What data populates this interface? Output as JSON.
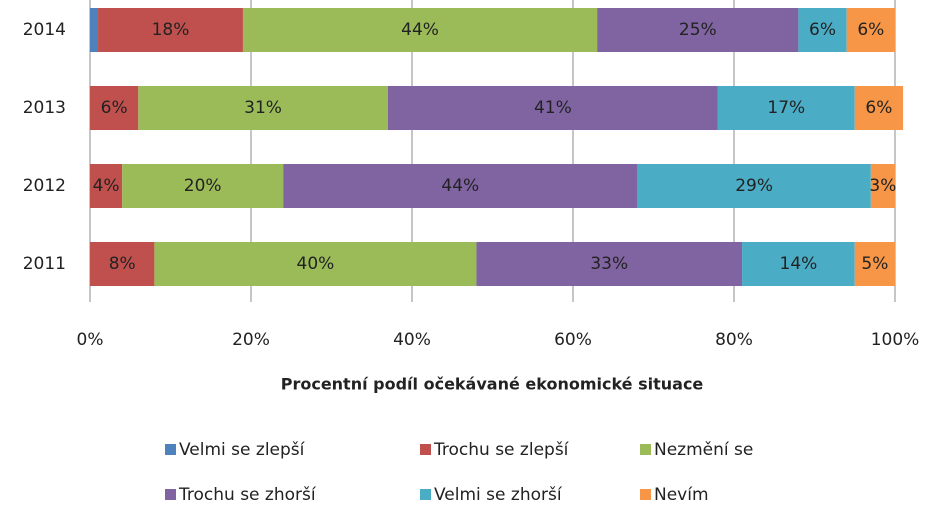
{
  "chart_data": {
    "type": "stacked-barh",
    "xlabel": "Procentní podíl očekávané ekonomické situace",
    "categories": [
      "2014",
      "2013",
      "2012",
      "2011"
    ],
    "series": [
      {
        "name": "Velmi se zlepší",
        "color": "#4f81bd",
        "values": [
          1,
          0,
          0,
          0
        ]
      },
      {
        "name": "Trochu se zlepší",
        "color": "#c0504d",
        "values": [
          18,
          6,
          4,
          8
        ],
        "value_labels": [
          "18%",
          "6%",
          "4%",
          "8%"
        ]
      },
      {
        "name": "Nezmění se",
        "color": "#9bbb59",
        "values": [
          44,
          31,
          20,
          40
        ],
        "value_labels": [
          "44%",
          "31%",
          "20%",
          "40%"
        ]
      },
      {
        "name": "Trochu se zhorší",
        "color": "#8064a2",
        "values": [
          25,
          41,
          44,
          33
        ],
        "value_labels": [
          "25%",
          "41%",
          "44%",
          "33%"
        ]
      },
      {
        "name": "Velmi se zhorší",
        "color": "#4bacc6",
        "values": [
          6,
          17,
          29,
          14
        ],
        "value_labels": [
          "6%",
          "17%",
          "29%",
          "14%"
        ]
      },
      {
        "name": "Nevím",
        "color": "#f79646",
        "values": [
          6,
          6,
          3,
          5
        ],
        "value_labels": [
          "6%",
          "6%",
          "3%",
          "5%"
        ]
      }
    ],
    "xlim": [
      0,
      100
    ],
    "xticks": [
      {
        "value": 0,
        "label": "0%"
      },
      {
        "value": 20,
        "label": "20%"
      },
      {
        "value": 40,
        "label": "40%"
      },
      {
        "value": 60,
        "label": "60%"
      },
      {
        "value": 80,
        "label": "80%"
      },
      {
        "value": 100,
        "label": "100%"
      }
    ],
    "grid": true,
    "legend": "bottom"
  }
}
